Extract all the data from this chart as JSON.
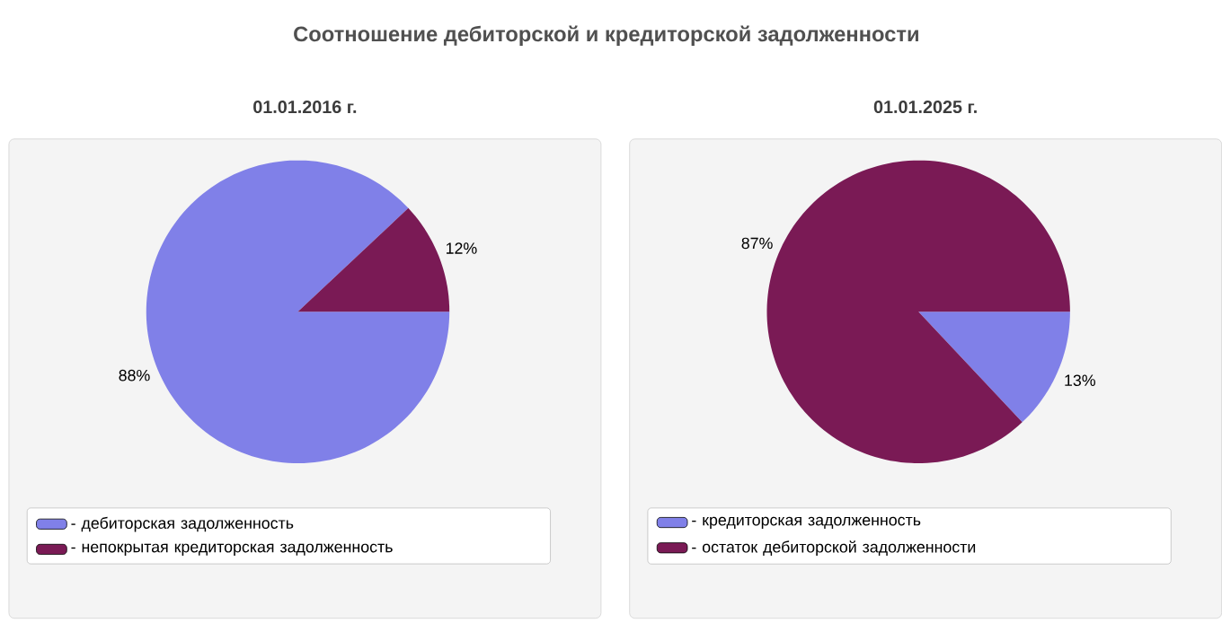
{
  "chart_data": [
    {
      "type": "pie",
      "title": "Соотношение дебиторской и кредиторской задолженности",
      "subtitle": "01.01.2016 г.",
      "categories": [
        "- дебиторская задолженность",
        "- непокрытая кредиторская задолженность"
      ],
      "values": [
        88,
        12
      ],
      "value_labels": [
        "88%",
        "12%"
      ],
      "colors": [
        "#8080e8",
        "#7a1a55"
      ],
      "legend": "bottom"
    },
    {
      "type": "pie",
      "subtitle": "01.01.2025 г.",
      "categories": [
        "- кредиторская задолженность",
        "- остаток дебиторской задолженности"
      ],
      "values": [
        13,
        87
      ],
      "value_labels": [
        "13%",
        "87%"
      ],
      "colors": [
        "#8080e8",
        "#7a1a55"
      ],
      "legend": "bottom"
    }
  ]
}
